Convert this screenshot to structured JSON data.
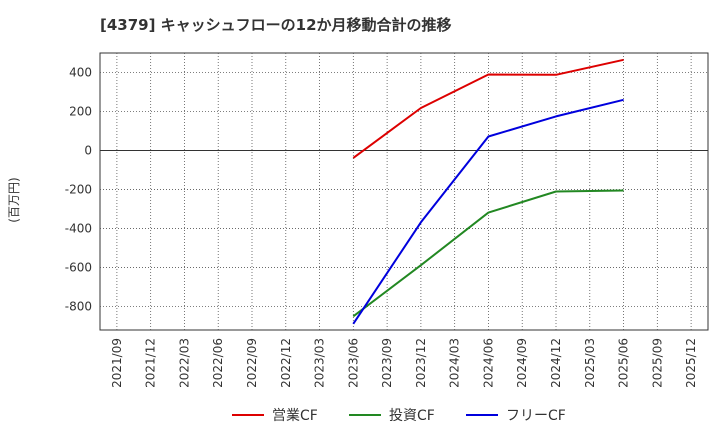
{
  "chart_data": {
    "type": "line",
    "title": "[4379]  キャッシュフローの12か月移動合計の推移",
    "ylabel": "(百万円)",
    "xlabel": "",
    "ylim": [
      -920,
      500
    ],
    "yticks": [
      400,
      200,
      0,
      -200,
      -400,
      -600,
      -800
    ],
    "ytick_labels": [
      "400",
      "200",
      "0",
      "-200",
      "-400",
      "-600",
      "-800"
    ],
    "categories": [
      "2021/09",
      "2021/12",
      "2022/03",
      "2022/06",
      "2022/09",
      "2022/12",
      "2023/03",
      "2023/06",
      "2023/09",
      "2023/12",
      "2024/03",
      "2024/06",
      "2024/09",
      "2024/12",
      "2025/03",
      "2025/06",
      "2025/09",
      "2025/12"
    ],
    "grid": true,
    "legend_position": "bottom",
    "series": [
      {
        "name": "営業CF",
        "color": "#dd0000",
        "values": [
          null,
          null,
          null,
          null,
          null,
          null,
          null,
          -38,
          null,
          218,
          null,
          390,
          null,
          388,
          null,
          465,
          null,
          null
        ]
      },
      {
        "name": "投資CF",
        "color": "#228822",
        "values": [
          null,
          null,
          null,
          null,
          null,
          null,
          null,
          -850,
          null,
          -588,
          null,
          -318,
          null,
          -210,
          null,
          -205,
          null,
          null
        ]
      },
      {
        "name": "フリーCF",
        "color": "#0000dd",
        "values": [
          null,
          null,
          null,
          null,
          null,
          null,
          null,
          -888,
          null,
          -368,
          null,
          72,
          null,
          175,
          null,
          260,
          null,
          null
        ]
      }
    ]
  }
}
